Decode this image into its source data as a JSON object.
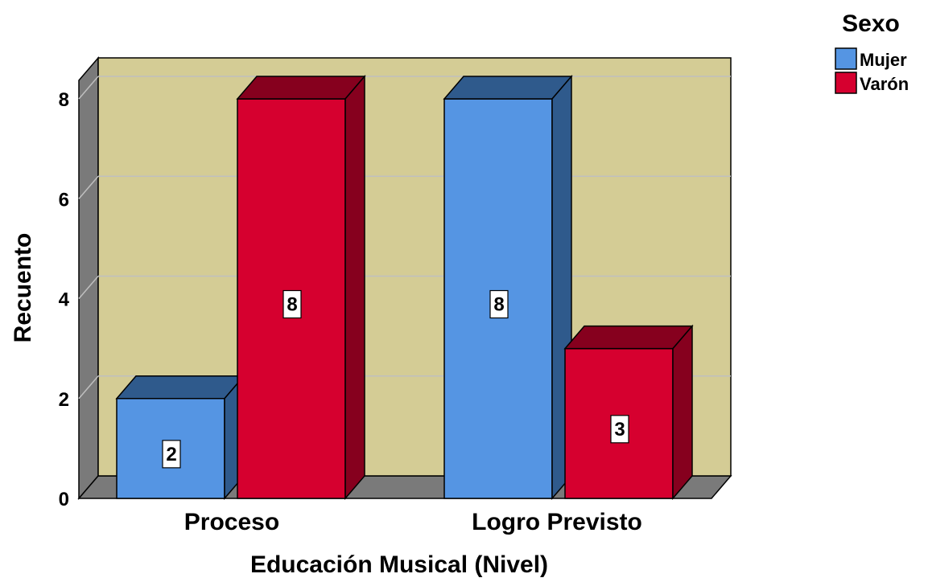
{
  "chart_data": {
    "type": "bar",
    "style": "3d-clustered",
    "categories": [
      "Proceso",
      "Logro Previsto"
    ],
    "series": [
      {
        "name": "Mujer",
        "values": [
          2,
          8
        ],
        "color": "#5595E3",
        "side_color": "#2F5A8C"
      },
      {
        "name": "Varón",
        "values": [
          8,
          3
        ],
        "color": "#D6002F",
        "side_color": "#86001E"
      }
    ],
    "xlabel": "Educación Musical (Nivel)",
    "ylabel": "Recuento",
    "ylim": [
      0,
      8
    ],
    "yticks": [
      "0",
      "2",
      "4",
      "6",
      "8"
    ],
    "data_labels": [
      [
        "2",
        "8"
      ],
      [
        "8",
        "3"
      ]
    ],
    "grid": true,
    "legend": {
      "title": "Sexo",
      "position": "top-right"
    },
    "colors": {
      "plot_background": "#D4CC95",
      "floor": "#7A7A7A",
      "wall_side": "#7A7A7A",
      "gridline": "#BFBFBF"
    }
  }
}
